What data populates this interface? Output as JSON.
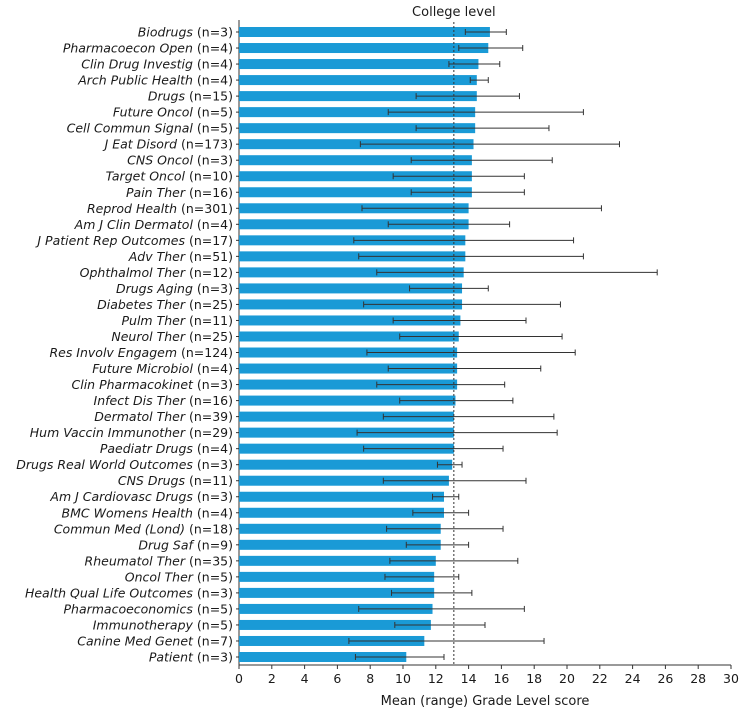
{
  "chart_data": {
    "type": "bar",
    "orientation": "horizontal",
    "xlabel": "Mean (range) Grade Level score",
    "xlim": [
      0,
      30
    ],
    "xticks": [
      0,
      2,
      4,
      6,
      8,
      10,
      12,
      14,
      16,
      18,
      20,
      22,
      24,
      26,
      28,
      30
    ],
    "bar_color": "#1a9ad6",
    "error_bar_color": "#333333",
    "reference_line": {
      "label": "College level",
      "value": 13.1,
      "style": "dotted"
    },
    "categories": [
      {
        "name": "Biodrugs",
        "n": "(n=3)",
        "value": 15.3,
        "low": 13.8,
        "high": 16.3
      },
      {
        "name": "Pharmacoecon Open",
        "n": "(n=4)",
        "value": 15.2,
        "low": 13.4,
        "high": 17.3
      },
      {
        "name": "Clin Drug Investig",
        "n": "(n=4)",
        "value": 14.6,
        "low": 12.8,
        "high": 15.9
      },
      {
        "name": "Arch Public Health",
        "n": "(n=4)",
        "value": 14.5,
        "low": 14.1,
        "high": 15.2
      },
      {
        "name": "Drugs",
        "n": "(n=15)",
        "value": 14.5,
        "low": 10.8,
        "high": 17.1
      },
      {
        "name": "Future Oncol",
        "n": "(n=5)",
        "value": 14.4,
        "low": 9.1,
        "high": 21.0
      },
      {
        "name": "Cell Commun Signal",
        "n": "(n=5)",
        "value": 14.4,
        "low": 10.8,
        "high": 18.9
      },
      {
        "name": "J Eat Disord",
        "n": "(n=173)",
        "value": 14.3,
        "low": 7.4,
        "high": 23.2
      },
      {
        "name": "CNS Oncol",
        "n": "(n=3)",
        "value": 14.2,
        "low": 10.5,
        "high": 19.1
      },
      {
        "name": "Target Oncol",
        "n": "(n=10)",
        "value": 14.2,
        "low": 9.4,
        "high": 17.4
      },
      {
        "name": "Pain Ther",
        "n": "(n=16)",
        "value": 14.2,
        "low": 10.5,
        "high": 17.4
      },
      {
        "name": "Reprod Health",
        "n": "(n=301)",
        "value": 14.0,
        "low": 7.5,
        "high": 22.1
      },
      {
        "name": "Am J Clin Dermatol",
        "n": "(n=4)",
        "value": 14.0,
        "low": 9.1,
        "high": 16.5
      },
      {
        "name": "J Patient Rep Outcomes",
        "n": "(n=17)",
        "value": 13.8,
        "low": 7.0,
        "high": 20.4
      },
      {
        "name": "Adv Ther",
        "n": "(n=51)",
        "value": 13.8,
        "low": 7.3,
        "high": 21.0
      },
      {
        "name": "Ophthalmol Ther",
        "n": "(n=12)",
        "value": 13.7,
        "low": 8.4,
        "high": 25.5
      },
      {
        "name": "Drugs Aging",
        "n": "(n=3)",
        "value": 13.6,
        "low": 10.4,
        "high": 15.2
      },
      {
        "name": "Diabetes Ther",
        "n": "(n=25)",
        "value": 13.6,
        "low": 7.6,
        "high": 19.6
      },
      {
        "name": "Pulm Ther",
        "n": "(n=11)",
        "value": 13.5,
        "low": 9.4,
        "high": 17.5
      },
      {
        "name": "Neurol Ther",
        "n": "(n=25)",
        "value": 13.4,
        "low": 9.8,
        "high": 19.7
      },
      {
        "name": "Res Involv Engagem",
        "n": "(n=124)",
        "value": 13.3,
        "low": 7.8,
        "high": 20.5
      },
      {
        "name": "Future Microbiol",
        "n": "(n=4)",
        "value": 13.3,
        "low": 9.1,
        "high": 18.4
      },
      {
        "name": "Clin Pharmacokinet",
        "n": "(n=3)",
        "value": 13.3,
        "low": 8.4,
        "high": 16.2
      },
      {
        "name": "Infect Dis Ther",
        "n": "(n=16)",
        "value": 13.2,
        "low": 9.8,
        "high": 16.7
      },
      {
        "name": "Dermatol Ther",
        "n": "(n=39)",
        "value": 13.1,
        "low": 8.8,
        "high": 19.2
      },
      {
        "name": "Hum Vaccin Immunother",
        "n": "(n=29)",
        "value": 13.1,
        "low": 7.2,
        "high": 19.4
      },
      {
        "name": "Paediatr Drugs",
        "n": "(n=4)",
        "value": 13.1,
        "low": 7.6,
        "high": 16.1
      },
      {
        "name": "Drugs Real World Outcomes",
        "n": "(n=3)",
        "value": 13.0,
        "low": 12.1,
        "high": 13.6
      },
      {
        "name": "CNS Drugs",
        "n": "(n=11)",
        "value": 12.8,
        "low": 8.8,
        "high": 17.5
      },
      {
        "name": "Am J Cardiovasc Drugs",
        "n": "(n=3)",
        "value": 12.5,
        "low": 11.8,
        "high": 13.4
      },
      {
        "name": "BMC Womens Health",
        "n": "(n=4)",
        "value": 12.5,
        "low": 10.6,
        "high": 14.0
      },
      {
        "name": "Commun Med (Lond)",
        "n": "(n=18)",
        "value": 12.3,
        "low": 9.0,
        "high": 16.1
      },
      {
        "name": "Drug Saf",
        "n": "(n=9)",
        "value": 12.3,
        "low": 10.2,
        "high": 14.0
      },
      {
        "name": "Rheumatol Ther",
        "n": "(n=35)",
        "value": 12.0,
        "low": 9.2,
        "high": 17.0
      },
      {
        "name": "Oncol Ther",
        "n": "(n=5)",
        "value": 11.9,
        "low": 8.9,
        "high": 13.4
      },
      {
        "name": "Health Qual Life Outcomes",
        "n": "(n=3)",
        "value": 11.9,
        "low": 9.3,
        "high": 14.2
      },
      {
        "name": "Pharmacoeconomics",
        "n": "(n=5)",
        "value": 11.8,
        "low": 7.3,
        "high": 17.4
      },
      {
        "name": "Immunotherapy",
        "n": "(n=5)",
        "value": 11.7,
        "low": 9.5,
        "high": 15.0
      },
      {
        "name": "Canine Med Genet",
        "n": "(n=7)",
        "value": 11.3,
        "low": 6.7,
        "high": 18.6
      },
      {
        "name": "Patient",
        "n": "(n=3)",
        "value": 10.2,
        "low": 7.1,
        "high": 12.5
      }
    ]
  }
}
